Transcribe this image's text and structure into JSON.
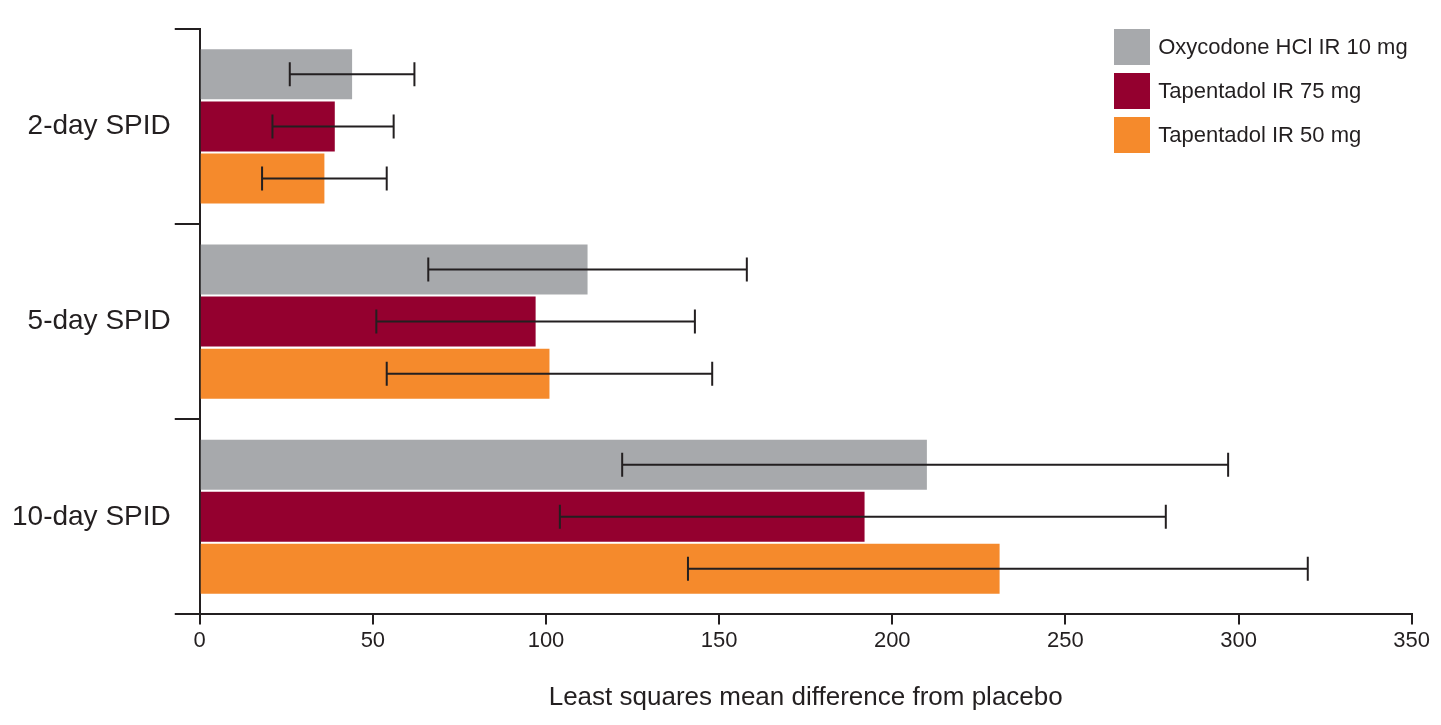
{
  "chart_data": {
    "type": "bar",
    "orientation": "horizontal",
    "xlabel": "Least squares mean difference from placebo",
    "categories": [
      "2-day SPID",
      "5-day SPID",
      "10-day SPID"
    ],
    "series": [
      {
        "name": "Oxycodone HCl IR 10 mg",
        "color": "#a7a9ac",
        "values": [
          44,
          112,
          210
        ],
        "errors": [
          [
            26,
            62
          ],
          [
            66,
            158
          ],
          [
            122,
            297
          ]
        ]
      },
      {
        "name": "Tapentadol IR 75 mg",
        "color": "#94002f",
        "values": [
          39,
          97,
          192
        ],
        "errors": [
          [
            21,
            56
          ],
          [
            51,
            143
          ],
          [
            104,
            279
          ]
        ]
      },
      {
        "name": "Tapentadol IR 50 mg",
        "color": "#f58a2c",
        "values": [
          36,
          101,
          231
        ],
        "errors": [
          [
            18,
            54
          ],
          [
            54,
            148
          ],
          [
            141,
            320
          ]
        ]
      }
    ],
    "xlim": [
      0,
      350
    ],
    "xticks": [
      0,
      50,
      100,
      150,
      200,
      250,
      300,
      350
    ],
    "grid": false,
    "legend": "top right"
  }
}
